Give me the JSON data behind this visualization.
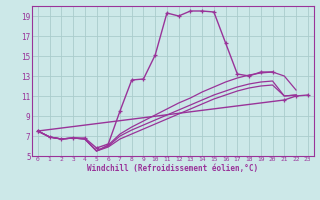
{
  "background_color": "#cce8e8",
  "grid_color": "#aacccc",
  "line_color": "#993399",
  "xlabel": "Windchill (Refroidissement éolien,°C)",
  "xlim": [
    -0.5,
    23.5
  ],
  "ylim": [
    5,
    20
  ],
  "yticks": [
    5,
    7,
    9,
    11,
    13,
    15,
    17,
    19
  ],
  "xticks": [
    0,
    1,
    2,
    3,
    4,
    5,
    6,
    7,
    8,
    9,
    10,
    11,
    12,
    13,
    14,
    15,
    16,
    17,
    18,
    19,
    20,
    21,
    22,
    23
  ],
  "series": [
    {
      "x": [
        0,
        1,
        2,
        3,
        4,
        5,
        6,
        7,
        8,
        9,
        10,
        11,
        12,
        13,
        14,
        15,
        16,
        17,
        18,
        19,
        20
      ],
      "y": [
        7.5,
        6.9,
        6.7,
        6.8,
        6.8,
        5.8,
        6.2,
        9.5,
        12.6,
        12.7,
        15.1,
        19.3,
        19.0,
        19.5,
        19.5,
        19.4,
        16.3,
        13.2,
        13.0,
        13.4,
        13.4
      ],
      "marker": "+",
      "lw": 1.0
    },
    {
      "x": [
        0,
        21,
        22,
        23
      ],
      "y": [
        7.5,
        10.6,
        11.0,
        11.1
      ],
      "marker": "+",
      "lw": 1.0
    },
    {
      "x": [
        0,
        1,
        2,
        3,
        4,
        5,
        6,
        7,
        8,
        9,
        10,
        11,
        12,
        13,
        14,
        15,
        16,
        17,
        18,
        19,
        20,
        21,
        22,
        23
      ],
      "y": [
        7.5,
        6.9,
        6.7,
        6.8,
        6.7,
        5.5,
        6.1,
        7.2,
        7.9,
        8.5,
        9.1,
        9.7,
        10.3,
        10.8,
        11.4,
        11.9,
        12.4,
        12.8,
        13.1,
        13.3,
        13.4,
        13.0,
        11.6,
        null
      ],
      "marker": null,
      "lw": 0.9
    },
    {
      "x": [
        0,
        1,
        2,
        3,
        4,
        5,
        6,
        7,
        8,
        9,
        10,
        11,
        12,
        13,
        14,
        15,
        16,
        17,
        18,
        19,
        20,
        21,
        22,
        23
      ],
      "y": [
        7.5,
        6.9,
        6.7,
        6.8,
        6.7,
        5.5,
        6.0,
        7.0,
        7.6,
        8.1,
        8.6,
        9.1,
        9.6,
        10.1,
        10.6,
        11.1,
        11.5,
        11.9,
        12.2,
        12.4,
        12.5,
        11.0,
        11.1,
        null
      ],
      "marker": null,
      "lw": 0.9
    },
    {
      "x": [
        0,
        1,
        2,
        3,
        4,
        5,
        6,
        7,
        8,
        9,
        10,
        11,
        12,
        13,
        14,
        15,
        16,
        17,
        18,
        19,
        20,
        21,
        22,
        23
      ],
      "y": [
        7.5,
        6.9,
        6.7,
        6.8,
        6.7,
        5.5,
        5.9,
        6.7,
        7.2,
        7.7,
        8.2,
        8.7,
        9.2,
        9.7,
        10.2,
        10.7,
        11.1,
        11.5,
        11.8,
        12.0,
        12.1,
        11.0,
        11.1,
        null
      ],
      "marker": null,
      "lw": 0.9
    }
  ]
}
